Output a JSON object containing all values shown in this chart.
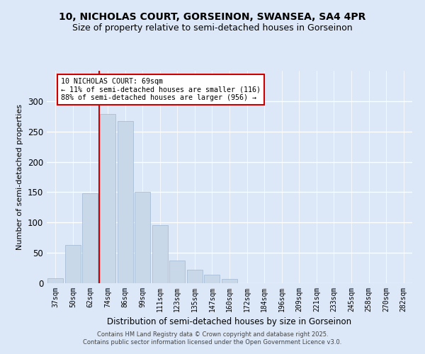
{
  "title1": "10, NICHOLAS COURT, GORSEINON, SWANSEA, SA4 4PR",
  "title2": "Size of property relative to semi-detached houses in Gorseinon",
  "xlabel": "Distribution of semi-detached houses by size in Gorseinon",
  "ylabel": "Number of semi-detached properties",
  "categories": [
    "37sqm",
    "50sqm",
    "62sqm",
    "74sqm",
    "86sqm",
    "99sqm",
    "111sqm",
    "123sqm",
    "135sqm",
    "147sqm",
    "160sqm",
    "172sqm",
    "184sqm",
    "196sqm",
    "209sqm",
    "221sqm",
    "233sqm",
    "245sqm",
    "258sqm",
    "270sqm",
    "282sqm"
  ],
  "values": [
    8,
    63,
    148,
    279,
    267,
    150,
    96,
    37,
    22,
    14,
    7,
    0,
    0,
    0,
    0,
    0,
    0,
    0,
    0,
    0,
    0
  ],
  "bar_color": "#c8d8e8",
  "bar_edge_color": "#a0b8d0",
  "property_line_x": 2.5,
  "annotation_title": "10 NICHOLAS COURT: 69sqm",
  "annotation_line1": "← 11% of semi-detached houses are smaller (116)",
  "annotation_line2": "88% of semi-detached houses are larger (956) →",
  "annotation_box_color": "#ffffff",
  "annotation_box_edge_color": "#cc0000",
  "property_line_color": "#cc0000",
  "footer1": "Contains HM Land Registry data © Crown copyright and database right 2025.",
  "footer2": "Contains public sector information licensed under the Open Government Licence v3.0.",
  "ylim": [
    0,
    350
  ],
  "yticks": [
    0,
    50,
    100,
    150,
    200,
    250,
    300,
    350
  ],
  "bg_color": "#dce8f8",
  "grid_color": "#ffffff",
  "title_fontsize": 10,
  "subtitle_fontsize": 9
}
